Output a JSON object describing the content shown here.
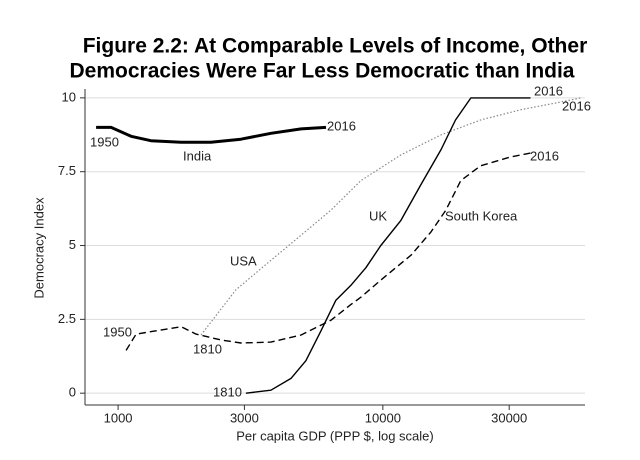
{
  "chart_data": {
    "type": "line",
    "title": [
      "Figure 2.2: At Comparable Levels of Income, Other",
      "Democracies Were Far Less Democratic than India"
    ],
    "xlabel": "Per capita GDP (PPP $, log scale)",
    "ylabel": "Democracy Index",
    "xscale": "log",
    "xlim": [
      750,
      58000
    ],
    "xticks": [
      1000,
      3000,
      10000,
      30000
    ],
    "ylim": [
      -0.4,
      10.3
    ],
    "yticks": [
      0,
      2.5,
      5,
      7.5,
      10
    ],
    "grid": true,
    "series": [
      {
        "name": "India",
        "color": "#000000",
        "line_style": "solid",
        "width": 3,
        "x": [
          826,
          941,
          1120,
          1330,
          1730,
          2240,
          2910,
          3780,
          4910,
          6100
        ],
        "values": [
          9.0,
          9.0,
          8.7,
          8.55,
          8.5,
          8.5,
          8.6,
          8.8,
          8.95,
          9.0
        ]
      },
      {
        "name": "USA",
        "color": "#888888",
        "line_style": "dotted",
        "width": 1.2,
        "x": [
          2056,
          2786,
          3776,
          4910,
          6370,
          8260,
          11700,
          16600,
          23400,
          33200,
          47000,
          55800
        ],
        "values": [
          1.97,
          3.5,
          4.5,
          5.35,
          6.2,
          7.2,
          8.07,
          8.75,
          9.25,
          9.6,
          9.86,
          10
        ]
      },
      {
        "name": "UK",
        "color": "#000000",
        "line_style": "solid",
        "width": 1.4,
        "x": [
          3040,
          3776,
          4500,
          5120,
          5830,
          6650,
          7570,
          8630,
          9820,
          11700,
          13900,
          16600,
          18800,
          21500,
          36100
        ],
        "values": [
          0,
          0.1,
          0.5,
          1.1,
          2.1,
          3.15,
          3.65,
          4.25,
          5.0,
          5.85,
          7.05,
          8.25,
          9.25,
          10,
          10
        ]
      },
      {
        "name": "South Korea",
        "color": "#000000",
        "line_style": "dashed",
        "width": 1.4,
        "x": [
          1072,
          1170,
          1730,
          1970,
          2450,
          2910,
          3776,
          4910,
          6370,
          7570,
          8260,
          9820,
          12800,
          15200,
          17300,
          19700,
          23400,
          30400,
          36100
        ],
        "values": [
          1.45,
          2.0,
          2.25,
          2.0,
          1.8,
          1.7,
          1.73,
          1.97,
          2.47,
          3.0,
          3.25,
          3.83,
          4.68,
          5.46,
          6.2,
          7.2,
          7.7,
          8.0,
          8.13
        ]
      }
    ],
    "annotations": [
      "2016",
      "1950",
      "2016",
      "2016",
      "2016",
      "1950",
      "1810",
      "1810"
    ]
  }
}
